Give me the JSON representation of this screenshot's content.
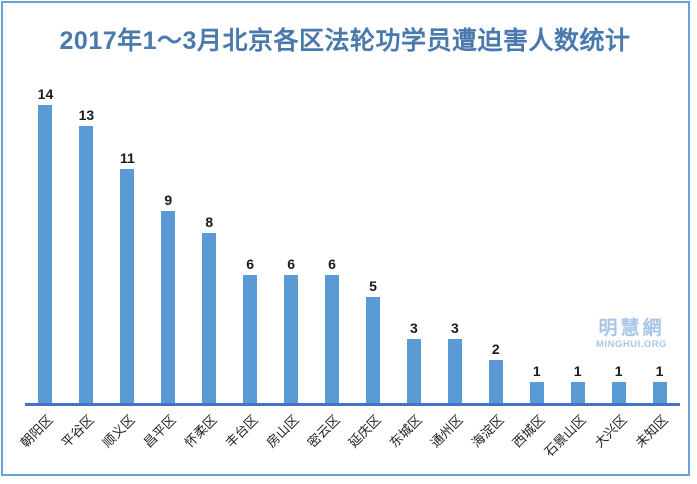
{
  "title": "2017年1～3月北京各区法轮功学员遭迫害人数统计",
  "watermark": {
    "cn": "明慧網",
    "en": "MINGHUI.ORG"
  },
  "colors": {
    "bar": "#5B9BD5",
    "axis": "#4472C4",
    "title_text": "#4A79AE",
    "frame_border": "#6BA1D6",
    "data_label": "#1a1a1a",
    "watermark": "#A9C6E8"
  },
  "chart_data": {
    "type": "bar",
    "title": "2017年1～3月北京各区法轮功学员遭迫害人数统计",
    "categories": [
      "朝阳区",
      "平谷区",
      "顺义区",
      "昌平区",
      "怀柔区",
      "丰台区",
      "房山区",
      "密云区",
      "延庆区",
      "东城区",
      "通州区",
      "海淀区",
      "西城区",
      "石景山区",
      "大兴区",
      "未知区"
    ],
    "values": [
      14,
      13,
      11,
      9,
      8,
      6,
      6,
      6,
      5,
      3,
      3,
      2,
      1,
      1,
      1,
      1
    ],
    "xlabel": "",
    "ylabel": "",
    "ylim": [
      0,
      14
    ],
    "grid": false,
    "legend": false,
    "data_labels": true,
    "x_tick_rotation": 45,
    "y_axis_visible": false
  }
}
